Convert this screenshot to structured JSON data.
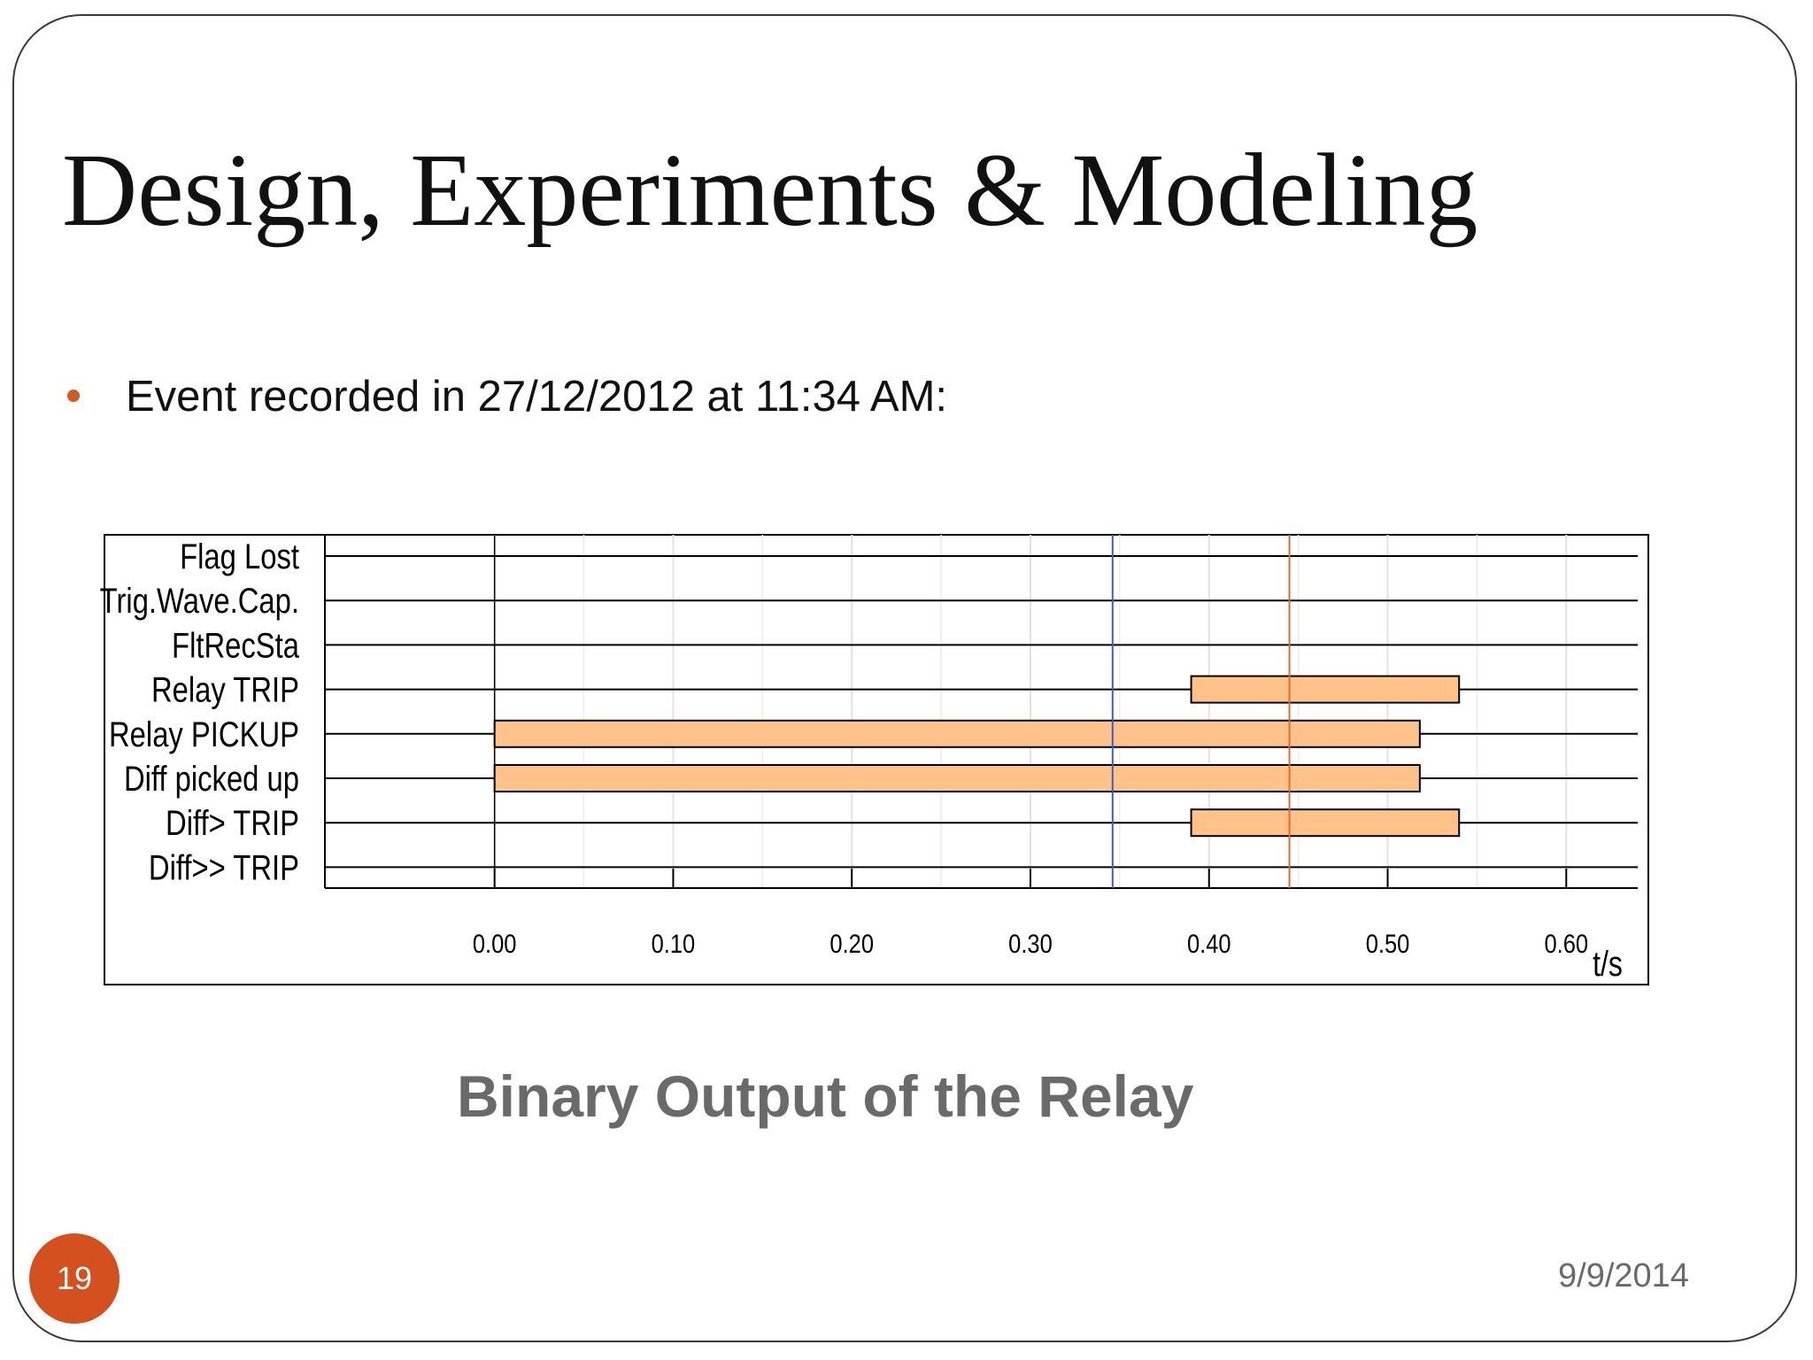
{
  "slide": {
    "title": "Design, Experiments & Modeling",
    "bullet": "Event recorded in 27/12/2012 at 11:34 AM:",
    "caption": "Binary Output of the Relay",
    "page_number": "19",
    "date": "9/9/2014"
  },
  "colors": {
    "bar_fill": "#ffc38a",
    "bar_stroke": "#000000",
    "bullet": "#d45a1e",
    "badge": "#d4501e",
    "marker_blue": "#3f5bc4",
    "marker_orange": "#e06a2c",
    "grid": "#e2e2e2"
  },
  "chart_data": {
    "type": "timeline",
    "signals": [
      "Flag Lost",
      "Trig.Wave.Cap.",
      "FltRecSta",
      "Relay TRIP",
      "Relay PICKUP",
      "Diff picked up",
      "Diff> TRIP",
      "Diff>> TRIP"
    ],
    "intervals": [
      {
        "signal": "Relay TRIP",
        "start": 0.39,
        "end": 0.54
      },
      {
        "signal": "Relay PICKUP",
        "start": 0.0,
        "end": 0.518
      },
      {
        "signal": "Diff picked up",
        "start": 0.0,
        "end": 0.518
      },
      {
        "signal": "Diff> TRIP",
        "start": 0.39,
        "end": 0.54
      }
    ],
    "markers": [
      {
        "color": "blue",
        "t": 0.346
      },
      {
        "color": "orange",
        "t": 0.445
      }
    ],
    "x_ticks": [
      "0.00",
      "0.10",
      "0.20",
      "0.30",
      "0.40",
      "0.50",
      "0.60"
    ],
    "x_tick_values": [
      0.0,
      0.1,
      0.2,
      0.3,
      0.4,
      0.5,
      0.6
    ],
    "xlim": [
      -0.095,
      0.64
    ],
    "xlabel": "t/s"
  }
}
